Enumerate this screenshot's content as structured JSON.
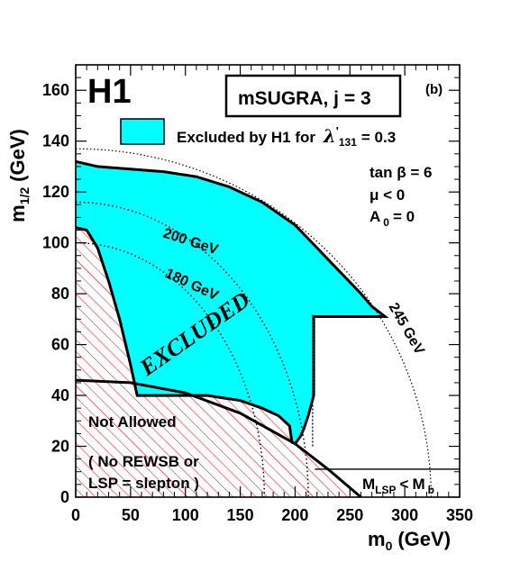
{
  "chart_data": {
    "type": "area",
    "xlim": [
      0,
      350
    ],
    "ylim": [
      0,
      170
    ],
    "xticks": [
      0,
      50,
      100,
      150,
      200,
      250,
      300,
      350
    ],
    "yticks": [
      0,
      20,
      40,
      60,
      80,
      100,
      120,
      140,
      160
    ],
    "xlabel_main": "m",
    "xlabel_sub": "0",
    "xlabel_unit": "(GeV)",
    "ylabel_main": "m",
    "ylabel_sub": "1/2",
    "ylabel_unit": "(GeV)",
    "logo": "H1",
    "model_box": "mSUGRA, j = 3",
    "panel_tag": "(b)",
    "legend": {
      "label_prefix": "Excluded by H1 for",
      "lambda_symbol": "λ",
      "lambda_prime": "'",
      "lambda_sub": "131",
      "label_suffix": "= 0.3",
      "color": "#00ffff"
    },
    "params": {
      "tanb": "tan β = 6",
      "mu": "μ < 0",
      "a0_main": "A",
      "a0_sub": "0",
      "a0_value": "= 0"
    },
    "excluded_label": "EXCLUDED",
    "not_allowed": "Not Allowed",
    "no_rewsb_line1": "( No REWSB or",
    "no_rewsb_line2": "LSP = slepton )",
    "mlsp_main": "M",
    "mlsp_sub": "LSP",
    "mlsp_lt": "<",
    "mlsp_main2": "M",
    "mlsp_sub2": "b",
    "contour_labels": [
      "180 GeV",
      "200 GeV",
      "245 GeV"
    ],
    "colors": {
      "excluded_fill": "#00ffff",
      "hatch": "#ff0000",
      "frame": "#000000"
    },
    "excluded_region": [
      [
        0,
        132
      ],
      [
        20,
        130
      ],
      [
        50,
        129
      ],
      [
        80,
        128
      ],
      [
        110,
        126
      ],
      [
        140,
        122
      ],
      [
        170,
        116
      ],
      [
        200,
        107
      ],
      [
        220,
        98
      ],
      [
        240,
        89
      ],
      [
        260,
        80
      ],
      [
        270,
        75
      ],
      [
        282,
        71
      ],
      [
        217,
        71
      ],
      [
        217,
        40
      ],
      [
        212,
        32
      ],
      [
        208,
        27
      ],
      [
        205,
        24
      ],
      [
        200,
        21
      ],
      [
        198,
        21
      ],
      [
        197,
        22
      ],
      [
        195,
        28
      ],
      [
        185,
        32
      ],
      [
        170,
        35
      ],
      [
        150,
        38
      ],
      [
        120,
        40
      ],
      [
        85,
        40
      ],
      [
        56,
        40
      ],
      [
        40,
        70
      ],
      [
        20,
        98
      ],
      [
        10,
        105
      ],
      [
        0,
        106
      ]
    ],
    "excluded_boundary_upper": [
      [
        0,
        132
      ],
      [
        20,
        130
      ],
      [
        50,
        129
      ],
      [
        80,
        128
      ],
      [
        110,
        126
      ],
      [
        140,
        122
      ],
      [
        170,
        116
      ],
      [
        200,
        107
      ],
      [
        220,
        98
      ],
      [
        240,
        89
      ],
      [
        260,
        80
      ],
      [
        270,
        75
      ],
      [
        282,
        71
      ],
      [
        217,
        71
      ],
      [
        217,
        40
      ],
      [
        212,
        32
      ],
      [
        208,
        27
      ],
      [
        205,
        24
      ],
      [
        200,
        21
      ]
    ],
    "not_allowed_boundary": [
      [
        0,
        106
      ],
      [
        10,
        105
      ],
      [
        20,
        98
      ],
      [
        30,
        85
      ],
      [
        40,
        70
      ],
      [
        50,
        52
      ],
      [
        56,
        40
      ],
      [
        85,
        40
      ],
      [
        120,
        40
      ],
      [
        150,
        38
      ],
      [
        170,
        35
      ],
      [
        185,
        32
      ],
      [
        195,
        28
      ],
      [
        197,
        22
      ],
      [
        198,
        21
      ]
    ],
    "theory_boundary": [
      [
        0,
        46
      ],
      [
        50,
        45
      ],
      [
        100,
        41
      ],
      [
        150,
        33
      ],
      [
        200,
        21
      ],
      [
        230,
        11
      ],
      [
        260,
        0
      ]
    ],
    "mlsp_line": {
      "x_start": 218,
      "x_end": 350,
      "y": 11
    },
    "dashed_vertical": {
      "x": 216,
      "y_start": 20,
      "y_end": 72
    },
    "contours": [
      {
        "label": "180 GeV",
        "radius_x": 172,
        "radius_y": 100
      },
      {
        "label": "200 GeV",
        "radius_x": 212,
        "radius_y": 116
      },
      {
        "label": "245 GeV",
        "radius_x": 324,
        "radius_y": 137
      }
    ]
  }
}
